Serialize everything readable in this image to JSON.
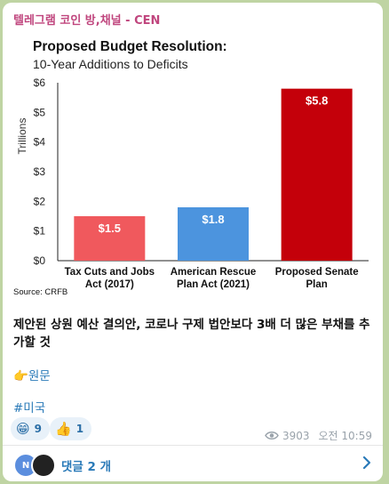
{
  "channel": {
    "name": "텔레그램 코인 방,채널 - CEN"
  },
  "chart_data": {
    "type": "bar",
    "title": "Proposed Budget Resolution:",
    "subtitle": "10-Year Additions to Deficits",
    "ylabel": "Trillions",
    "ylim": [
      0,
      6
    ],
    "yticks": [
      "$0",
      "$1",
      "$2",
      "$3",
      "$4",
      "$5",
      "$6"
    ],
    "categories": [
      [
        "Tax Cuts and Jobs",
        "Act (2017)"
      ],
      [
        "American Rescue",
        "Plan Act (2021)"
      ],
      [
        "Proposed Senate",
        "Plan"
      ]
    ],
    "values": [
      1.5,
      1.8,
      5.8
    ],
    "data_labels": [
      "$1.5",
      "$1.8",
      "$5.8"
    ],
    "colors": [
      "#f0595d",
      "#4c94de",
      "#c4000a"
    ],
    "source": "Source: CRFB"
  },
  "message": {
    "text": "제안된 상원 예산 결의안, 코로나 구제 법안보다 3배 더 많은 부채를 추가할 것",
    "link_emoji": "👉",
    "link_text": "원문",
    "hashtag": "#미국"
  },
  "reactions": [
    {
      "emoji": "😁",
      "count": "9"
    },
    {
      "emoji": "👍",
      "count": "1"
    }
  ],
  "meta": {
    "views": "3903",
    "time": "오전 10:59"
  },
  "comments": {
    "avatar_initial": "N",
    "label": "댓글 2 개"
  }
}
